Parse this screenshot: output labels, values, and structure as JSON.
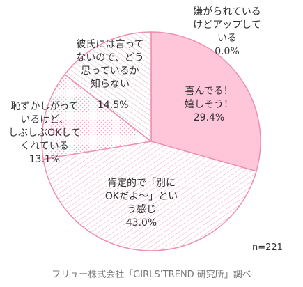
{
  "chart_data": {
    "type": "pie",
    "categories": [
      "嫌がられている\nけどアップして\nいる",
      "喜んでる！\n嬉しそう！",
      "肯定的で「別に\nOKだよ〜」とい\nう感じ",
      "恥ずかしがって\nいるけど、\nしぶしぶOKして\nくれている",
      "彼氏には言って\nないので、どう\n思っているか\n知らない"
    ],
    "values": [
      0.0,
      29.4,
      43.0,
      13.1,
      14.5
    ],
    "value_labels": [
      "0.0%",
      "29.4%",
      "43.0%",
      "13.1%",
      "14.5%"
    ],
    "colors": [
      "#f2a0bc",
      "#ffc6da",
      "#f3a7c0",
      "#f3a7c0",
      "#d9b9c4"
    ],
    "edge_color": "#ee8fb0",
    "note": "n=221",
    "source": "フリュー株式会社「GIRLS’TREND 研究所」調べ"
  }
}
